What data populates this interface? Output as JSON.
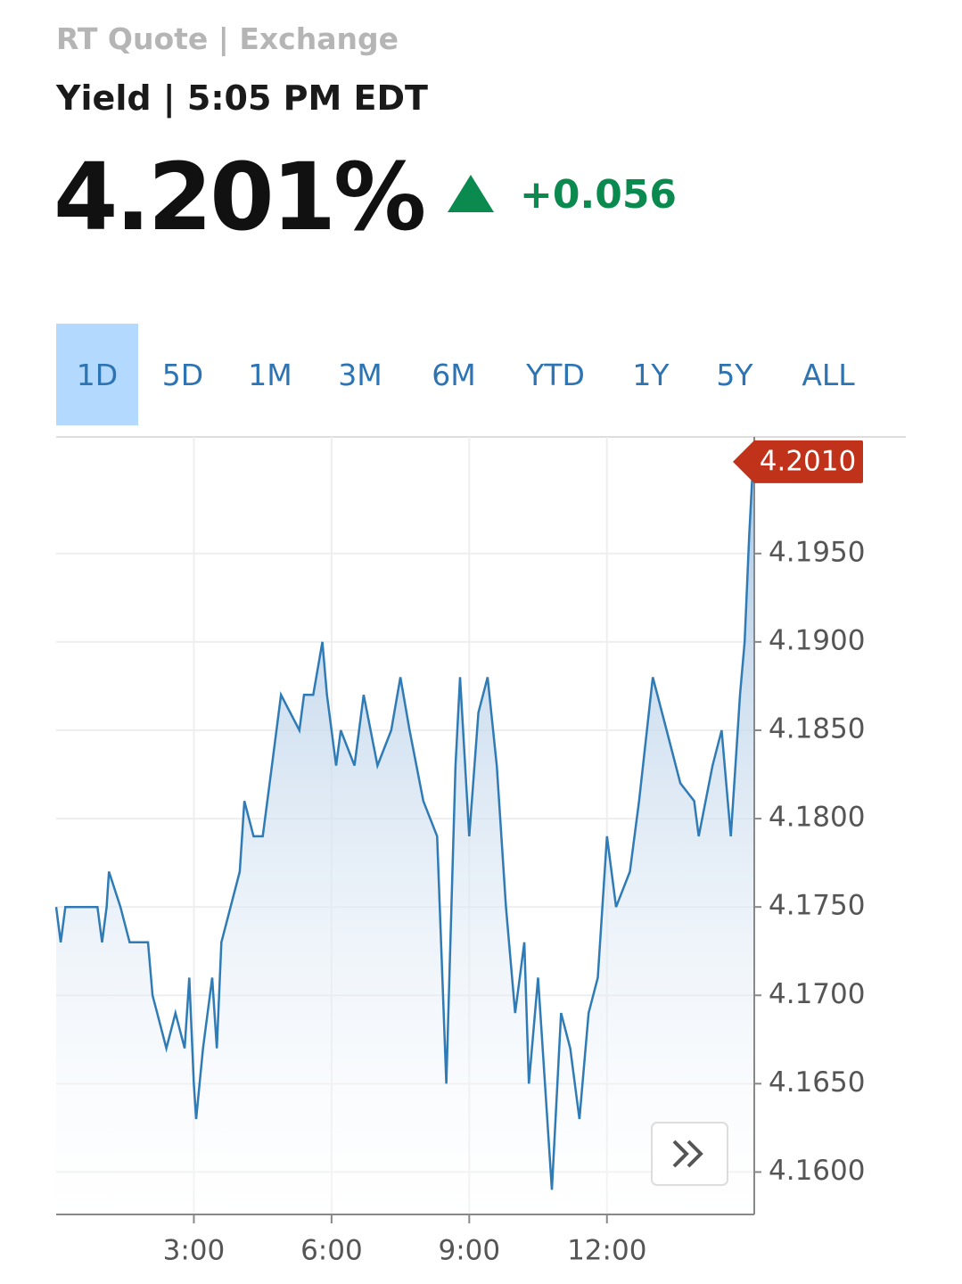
{
  "header": {
    "source": "RT Quote | Exchange",
    "label": "Yield | 5:05 PM EDT",
    "price": "4.201%",
    "change": "+0.056"
  },
  "tabs": [
    "1D",
    "5D",
    "1M",
    "3M",
    "6M",
    "YTD",
    "1Y",
    "5Y",
    "ALL"
  ],
  "active_tab": 0,
  "chart_data": {
    "type": "line",
    "color": "#2f7bb6",
    "grid": true,
    "x": [
      0.0,
      0.1,
      0.2,
      0.9,
      1.0,
      1.1,
      1.15,
      1.4,
      1.6,
      2.0,
      2.1,
      2.2,
      2.4,
      2.6,
      2.8,
      2.9,
      3.0,
      3.05,
      3.2,
      3.4,
      3.5,
      3.6,
      3.8,
      4.0,
      4.1,
      4.3,
      4.5,
      4.7,
      4.9,
      5.3,
      5.4,
      5.6,
      5.8,
      5.9,
      6.1,
      6.2,
      6.5,
      6.7,
      7.0,
      7.3,
      7.5,
      7.7,
      8.0,
      8.3,
      8.5,
      8.7,
      8.8,
      9.0,
      9.2,
      9.4,
      9.6,
      9.8,
      10.0,
      10.2,
      10.3,
      10.5,
      10.8,
      11.0,
      11.2,
      11.4,
      11.6,
      11.8,
      12.0,
      12.2,
      12.5,
      12.7,
      13.0,
      13.3,
      13.6,
      13.9,
      14.0,
      14.3,
      14.5,
      14.7,
      14.8,
      14.9,
      15.0,
      15.1,
      15.2
    ],
    "values": [
      4.175,
      4.173,
      4.175,
      4.175,
      4.173,
      4.175,
      4.177,
      4.175,
      4.173,
      4.173,
      4.17,
      4.169,
      4.167,
      4.169,
      4.167,
      4.171,
      4.165,
      4.163,
      4.167,
      4.171,
      4.167,
      4.173,
      4.175,
      4.177,
      4.181,
      4.179,
      4.179,
      4.183,
      4.187,
      4.185,
      4.187,
      4.187,
      4.19,
      4.187,
      4.183,
      4.185,
      4.183,
      4.187,
      4.183,
      4.185,
      4.188,
      4.185,
      4.181,
      4.179,
      4.165,
      4.183,
      4.188,
      4.179,
      4.186,
      4.188,
      4.183,
      4.175,
      4.169,
      4.173,
      4.165,
      4.171,
      4.159,
      4.169,
      4.167,
      4.163,
      4.169,
      4.171,
      4.179,
      4.175,
      4.177,
      4.181,
      4.188,
      4.185,
      4.182,
      4.181,
      4.179,
      4.183,
      4.185,
      4.179,
      4.183,
      4.187,
      4.19,
      4.196,
      4.201
    ],
    "xlim": [
      0,
      15.21
    ],
    "ylim": [
      4.1576,
      4.2016
    ],
    "xticks": [
      {
        "value": 3,
        "label": "3:00"
      },
      {
        "value": 6,
        "label": "6:00"
      },
      {
        "value": 9,
        "label": "9:00"
      },
      {
        "value": 12,
        "label": "12:00"
      }
    ],
    "yticks": [
      {
        "value": 4.16,
        "label": "4.1600"
      },
      {
        "value": 4.165,
        "label": "4.1650"
      },
      {
        "value": 4.17,
        "label": "4.1700"
      },
      {
        "value": 4.175,
        "label": "4.1750"
      },
      {
        "value": 4.18,
        "label": "4.1800"
      },
      {
        "value": 4.185,
        "label": "4.1850"
      },
      {
        "value": 4.19,
        "label": "4.1900"
      },
      {
        "value": 4.195,
        "label": "4.1950"
      }
    ],
    "current": {
      "value": 4.201,
      "label": "4.2010"
    }
  }
}
